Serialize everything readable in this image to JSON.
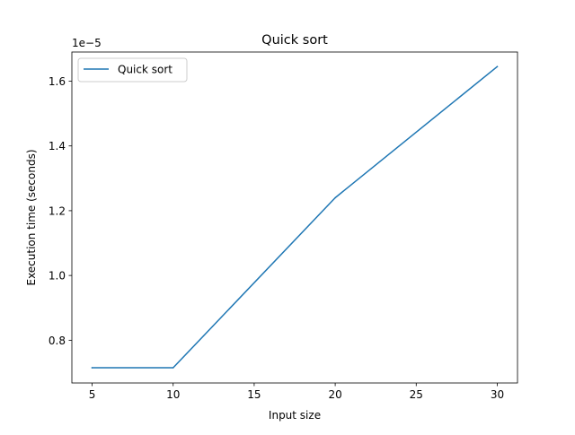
{
  "chart_data": {
    "type": "line",
    "title": "Quick sort",
    "xlabel": "Input size",
    "ylabel": "Execution time (seconds)",
    "y_offset_label": "1e−5",
    "x": [
      5,
      10,
      20,
      30
    ],
    "series": [
      {
        "name": "Quick sort",
        "values": [
          7.15e-06,
          7.15e-06,
          1.24e-05,
          1.645e-05
        ]
      }
    ],
    "xlim": [
      3.75,
      31.25
    ],
    "ylim": [
      6.68e-06,
      1.69e-05
    ],
    "xticks": [
      5,
      10,
      15,
      20,
      25,
      30
    ],
    "xtick_labels": [
      "5",
      "10",
      "15",
      "20",
      "25",
      "30"
    ],
    "yticks": [
      8e-06,
      1e-05,
      1.2e-05,
      1.4e-05,
      1.6e-05
    ],
    "ytick_labels": [
      "0.8",
      "1.0",
      "1.2",
      "1.4",
      "1.6"
    ],
    "grid": false,
    "legend_position": "top-left",
    "colors": {
      "series": "#1f77b4"
    }
  }
}
